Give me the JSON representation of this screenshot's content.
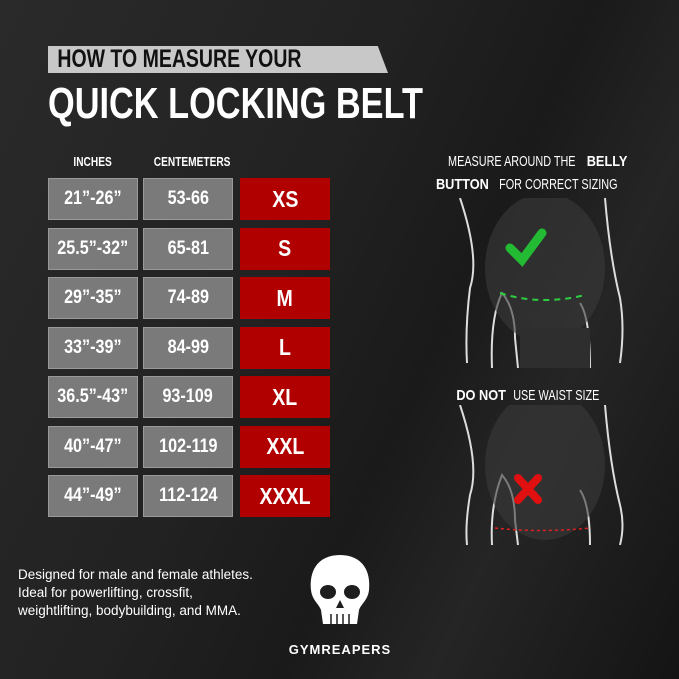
{
  "header": {
    "line1": "HOW TO MEASURE YOUR",
    "line2": "QUICK LOCKING BELT"
  },
  "table": {
    "columns": [
      "INCHES",
      "CENTEMETERS"
    ],
    "rows": [
      {
        "inches": "21”-26”",
        "cm": "53-66",
        "size": "XS"
      },
      {
        "inches": "25.5”-32”",
        "cm": "65-81",
        "size": "S"
      },
      {
        "inches": "29”-35”",
        "cm": "74-89",
        "size": "M"
      },
      {
        "inches": "33”-39”",
        "cm": "84-99",
        "size": "L"
      },
      {
        "inches": "36.5”-43”",
        "cm": "93-109",
        "size": "XL"
      },
      {
        "inches": "40”-47”",
        "cm": "102-119",
        "size": "XXL"
      },
      {
        "inches": "44”-49”",
        "cm": "112-124",
        "size": "XXXL"
      }
    ]
  },
  "right": {
    "top": {
      "pre": "MEASURE AROUND THE ",
      "bold1": "BELLY",
      "bold2": "BUTTON",
      "post": " FOR CORRECT SIZING",
      "icon": "check-icon",
      "line_color": "#2ecc40"
    },
    "bottom": {
      "bold": "DO NOT",
      "post": " USE WAIST SIZE",
      "icon": "x-icon",
      "line_color": "#e02020"
    }
  },
  "footer": {
    "text": "Designed for male and female athletes. Ideal for powerlifting, crossfit, weightlifting, bodybuilding, and MMA."
  },
  "brand": {
    "name": "GYMREAPERS"
  },
  "colors": {
    "size_red": "#b00000",
    "cell_gray": "#7a7a7a",
    "banner": "#c8c8c8"
  }
}
